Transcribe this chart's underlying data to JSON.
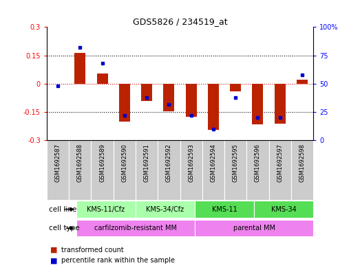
{
  "title": "GDS5826 / 234519_at",
  "samples": [
    "GSM1692587",
    "GSM1692588",
    "GSM1692589",
    "GSM1692590",
    "GSM1692591",
    "GSM1692592",
    "GSM1692593",
    "GSM1692594",
    "GSM1692595",
    "GSM1692596",
    "GSM1692597",
    "GSM1692598"
  ],
  "red_values": [
    0.0,
    0.162,
    0.055,
    -0.2,
    -0.09,
    -0.145,
    -0.175,
    -0.245,
    -0.04,
    -0.215,
    -0.21,
    0.02
  ],
  "blue_values": [
    48,
    82,
    68,
    22,
    38,
    32,
    22,
    10,
    38,
    20,
    20,
    58
  ],
  "ylim_left": [
    -0.3,
    0.3
  ],
  "ylim_right": [
    0,
    100
  ],
  "yticks_left": [
    -0.3,
    -0.15,
    0.0,
    0.15,
    0.3
  ],
  "yticks_right": [
    0,
    25,
    50,
    75,
    100
  ],
  "ytick_labels_left": [
    "-0.3",
    "-0.15",
    "0",
    "0.15",
    "0.3"
  ],
  "ytick_labels_right": [
    "0",
    "25",
    "50",
    "75",
    "100%"
  ],
  "cl_groups": [
    {
      "label": "KMS-11/Cfz",
      "start": 0,
      "end": 2,
      "color": "#AAFFAA"
    },
    {
      "label": "KMS-34/Cfz",
      "start": 3,
      "end": 5,
      "color": "#AAFFAA"
    },
    {
      "label": "KMS-11",
      "start": 6,
      "end": 8,
      "color": "#55DD55"
    },
    {
      "label": "KMS-34",
      "start": 9,
      "end": 11,
      "color": "#55DD55"
    }
  ],
  "ct_groups": [
    {
      "label": "carfilzomib-resistant MM",
      "start": 0,
      "end": 5,
      "color": "#EE82EE"
    },
    {
      "label": "parental MM",
      "start": 6,
      "end": 11,
      "color": "#EE82EE"
    }
  ],
  "cell_line_label": "cell line",
  "cell_type_label": "cell type",
  "sample_box_color": "#CCCCCC",
  "bar_color": "#BB2200",
  "marker_color": "#0000CC",
  "hline_color": "#CC0000",
  "legend_red": "transformed count",
  "legend_blue": "percentile rank within the sample"
}
